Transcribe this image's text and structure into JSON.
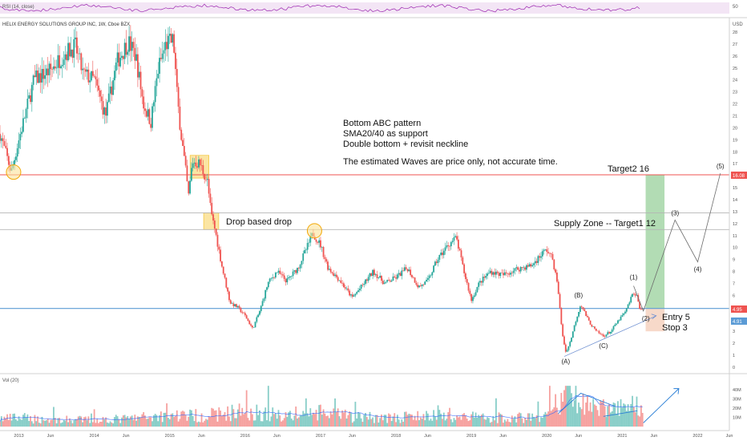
{
  "header": {
    "symbol_title": "HELIX ENERGY SOLUTIONS GROUP INC, 1W, Cboe BZX",
    "currency": "USD",
    "rsi_label": "RSI (14, close)",
    "rsi_level": "50",
    "volume_label": "Vol (20)"
  },
  "colors": {
    "up": "#26a69a",
    "down": "#ef5350",
    "target_line": "#ef5350",
    "entry_line": "#5b9bd5",
    "zone_line": "#b5b5b5",
    "highlight_box": "#fbe39a",
    "target_zone": "#a5d6a7",
    "stop_zone": "#f6d5c3",
    "wave_line": "#6d6d6d",
    "rsi_line": "#9c27b0",
    "volume_ma": "#2962ff"
  },
  "annotations": {
    "notes": [
      "Bottom ABC pattern",
      "SMA20/40 as support",
      "Double bottom + revisit neckline",
      "The estimated Waves are price only,  not accurate time."
    ],
    "target2": "Target2 16",
    "supply_zone": "Supply Zone -- Target1 12",
    "drop_label": "Drop based drop",
    "entry": "Entry 5",
    "stop": "Stop 3",
    "waves": [
      "(A)",
      "(B)",
      "(C)",
      "(1)",
      "(2)",
      "(3)",
      "(4)",
      "(5)"
    ]
  },
  "price_badges": {
    "target": "16.08",
    "last": "4.95",
    "entry": "4.91"
  },
  "chart_data": {
    "type": "candlestick",
    "title": "HELIX ENERGY SOLUTIONS GROUP INC, 1W, Cboe BZX",
    "ylabel": "USD",
    "ylim": [
      0,
      28
    ],
    "y_ticks": [
      0,
      1,
      2,
      3,
      4,
      5,
      6,
      7,
      8,
      9,
      10,
      11,
      12,
      13,
      14,
      15,
      16,
      17,
      18,
      19,
      20,
      21,
      22,
      23,
      24,
      25,
      26,
      27,
      28
    ],
    "x_ticks": [
      {
        "label": "2013",
        "t": 2013.0
      },
      {
        "label": "Jun",
        "t": 2013.42
      },
      {
        "label": "2014",
        "t": 2014.0
      },
      {
        "label": "Jun",
        "t": 2014.42
      },
      {
        "label": "2015",
        "t": 2015.0
      },
      {
        "label": "Jun",
        "t": 2015.42
      },
      {
        "label": "2016",
        "t": 2016.0
      },
      {
        "label": "Jun",
        "t": 2016.42
      },
      {
        "label": "2017",
        "t": 2017.0
      },
      {
        "label": "Jun",
        "t": 2017.42
      },
      {
        "label": "2018",
        "t": 2018.0
      },
      {
        "label": "Jun",
        "t": 2018.42
      },
      {
        "label": "2019",
        "t": 2019.0
      },
      {
        "label": "Jun",
        "t": 2019.42
      },
      {
        "label": "2020",
        "t": 2020.0
      },
      {
        "label": "Jun",
        "t": 2020.42
      },
      {
        "label": "2021",
        "t": 2021.0
      },
      {
        "label": "Jun",
        "t": 2021.42
      },
      {
        "label": "2022",
        "t": 2022.0
      },
      {
        "label": "Jun",
        "t": 2022.42
      }
    ],
    "x_range": [
      2012.75,
      2022.42
    ],
    "price_path": [
      [
        2012.75,
        19.5
      ],
      [
        2012.9,
        16.3
      ],
      [
        2013.0,
        19.0
      ],
      [
        2013.2,
        24.0
      ],
      [
        2013.42,
        24.8
      ],
      [
        2013.6,
        26.2
      ],
      [
        2013.75,
        26.8
      ],
      [
        2013.85,
        24.5
      ],
      [
        2014.0,
        24.0
      ],
      [
        2014.15,
        21.0
      ],
      [
        2014.3,
        25.5
      ],
      [
        2014.45,
        27.2
      ],
      [
        2014.55,
        26.0
      ],
      [
        2014.65,
        22.0
      ],
      [
        2014.75,
        20.5
      ],
      [
        2014.85,
        25.0
      ],
      [
        2014.95,
        27.0
      ],
      [
        2015.05,
        27.3
      ],
      [
        2015.1,
        22.5
      ],
      [
        2015.15,
        19.5
      ],
      [
        2015.2,
        17.0
      ],
      [
        2015.25,
        14.3
      ],
      [
        2015.3,
        17.2
      ],
      [
        2015.4,
        17.0
      ],
      [
        2015.5,
        15.5
      ],
      [
        2015.55,
        12.8
      ],
      [
        2015.6,
        11.5
      ],
      [
        2015.7,
        8.2
      ],
      [
        2015.8,
        5.4
      ],
      [
        2015.9,
        5.0
      ],
      [
        2016.0,
        4.3
      ],
      [
        2016.1,
        3.2
      ],
      [
        2016.2,
        4.8
      ],
      [
        2016.3,
        7.0
      ],
      [
        2016.42,
        8.0
      ],
      [
        2016.55,
        7.2
      ],
      [
        2016.7,
        8.3
      ],
      [
        2016.82,
        10.0
      ],
      [
        2016.9,
        11.2
      ],
      [
        2017.0,
        10.2
      ],
      [
        2017.1,
        8.3
      ],
      [
        2017.25,
        7.3
      ],
      [
        2017.42,
        5.8
      ],
      [
        2017.55,
        6.8
      ],
      [
        2017.7,
        8.0
      ],
      [
        2017.85,
        7.0
      ],
      [
        2018.0,
        7.5
      ],
      [
        2018.15,
        8.3
      ],
      [
        2018.3,
        6.7
      ],
      [
        2018.42,
        7.2
      ],
      [
        2018.55,
        9.0
      ],
      [
        2018.7,
        10.3
      ],
      [
        2018.8,
        10.8
      ],
      [
        2018.9,
        8.0
      ],
      [
        2019.0,
        5.6
      ],
      [
        2019.1,
        7.0
      ],
      [
        2019.25,
        8.0
      ],
      [
        2019.42,
        7.7
      ],
      [
        2019.6,
        8.2
      ],
      [
        2019.8,
        8.5
      ],
      [
        2019.95,
        9.6
      ],
      [
        2020.0,
        9.8
      ],
      [
        2020.08,
        9.0
      ],
      [
        2020.15,
        6.5
      ],
      [
        2020.2,
        3.0
      ],
      [
        2020.25,
        1.3
      ],
      [
        2020.3,
        1.9
      ],
      [
        2020.38,
        3.8
      ],
      [
        2020.45,
        5.3
      ],
      [
        2020.55,
        3.9
      ],
      [
        2020.65,
        3.0
      ],
      [
        2020.75,
        2.6
      ],
      [
        2020.85,
        3.0
      ],
      [
        2020.95,
        3.9
      ],
      [
        2021.05,
        4.7
      ],
      [
        2021.12,
        5.9
      ],
      [
        2021.18,
        6.2
      ],
      [
        2021.24,
        4.8
      ],
      [
        2021.28,
        4.95
      ]
    ],
    "volume_path": [
      [
        2012.75,
        8
      ],
      [
        2013.0,
        9
      ],
      [
        2013.42,
        7
      ],
      [
        2014.0,
        7
      ],
      [
        2014.42,
        8
      ],
      [
        2015.0,
        12
      ],
      [
        2015.42,
        11
      ],
      [
        2016.0,
        16
      ],
      [
        2016.42,
        12
      ],
      [
        2017.0,
        14
      ],
      [
        2017.42,
        10
      ],
      [
        2018.0,
        9
      ],
      [
        2018.42,
        11
      ],
      [
        2019.0,
        10
      ],
      [
        2019.42,
        9
      ],
      [
        2020.0,
        10
      ],
      [
        2020.15,
        25
      ],
      [
        2020.3,
        42
      ],
      [
        2020.45,
        22
      ],
      [
        2020.75,
        18
      ],
      [
        2021.0,
        20
      ],
      [
        2021.15,
        22
      ],
      [
        2021.28,
        14
      ]
    ],
    "volume_ylim": [
      0,
      45
    ],
    "volume_ticks": [
      "10M",
      "20M",
      "30M",
      "40M"
    ],
    "horizontal_levels": {
      "target2": 16.08,
      "supply_top": 12.9,
      "supply_bottom": 11.5,
      "entry": 4.91
    },
    "projected_waves": [
      {
        "label": "(A)",
        "t": 2020.25,
        "price": 1.1
      },
      {
        "label": "(B)",
        "t": 2020.42,
        "price": 5.3
      },
      {
        "label": "(C)",
        "t": 2020.75,
        "price": 2.4
      },
      {
        "label": "(1)",
        "t": 2021.15,
        "price": 6.8
      },
      {
        "label": "(2)",
        "t": 2021.28,
        "price": 4.7
      },
      {
        "label": "(3)",
        "t": 2021.7,
        "price": 12.3
      },
      {
        "label": "(4)",
        "t": 2022.0,
        "price": 8.8
      },
      {
        "label": "(5)",
        "t": 2022.3,
        "price": 16.2
      }
    ]
  }
}
